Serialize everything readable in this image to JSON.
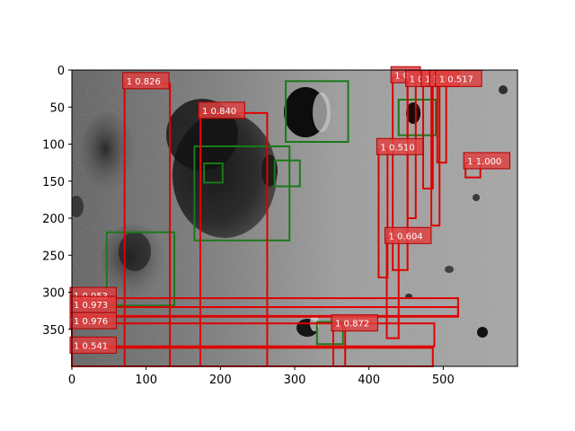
{
  "chart_data": {
    "type": "image-detection",
    "title": "",
    "xlabel": "",
    "ylabel": "",
    "xlim": [
      0,
      600
    ],
    "ylim": [
      400,
      0
    ],
    "xticks": [
      0,
      100,
      200,
      300,
      400,
      500
    ],
    "yticks": [
      0,
      50,
      100,
      150,
      200,
      250,
      300,
      350
    ],
    "grid": false,
    "legend": "none",
    "colors": {
      "prediction": "#e00000",
      "ground_truth": "#1a7a1a",
      "label_bg": "#e04040"
    },
    "image_description_icon": "lunar-surface-image",
    "ground_truth_boxes": [
      {
        "x0": 288,
        "y0": 15,
        "x1": 372,
        "y1": 97
      },
      {
        "x0": 440,
        "y0": 40,
        "x1": 490,
        "y1": 88
      },
      {
        "x0": 165,
        "y0": 103,
        "x1": 293,
        "y1": 230
      },
      {
        "x0": 178,
        "y0": 126,
        "x1": 203,
        "y1": 152
      },
      {
        "x0": 273,
        "y0": 122,
        "x1": 307,
        "y1": 157
      },
      {
        "x0": 47,
        "y0": 219,
        "x1": 138,
        "y1": 318
      },
      {
        "x0": 330,
        "y0": 340,
        "x1": 365,
        "y1": 370
      }
    ],
    "prediction_boxes": [
      {
        "label": "1 0.826",
        "x0": 71,
        "y0": 18,
        "x1": 132,
        "y1": 405
      },
      {
        "label": "1 0.840",
        "x0": 173,
        "y0": 58,
        "x1": 263,
        "y1": 400
      },
      {
        "label": "1 0.510",
        "x0": 413,
        "y0": 107,
        "x1": 425,
        "y1": 280
      },
      {
        "label": "1 0.604",
        "x0": 424,
        "y0": 227,
        "x1": 440,
        "y1": 362
      },
      {
        "label": "1 0.872",
        "x0": 352,
        "y0": 345,
        "x1": 368,
        "y1": 400
      },
      {
        "label": "1 1.000",
        "x0": 530,
        "y0": 126,
        "x1": 550,
        "y1": 145
      },
      {
        "label": "1 0.",
        "x0": 432,
        "y0": 10,
        "x1": 452,
        "y1": 270
      },
      {
        "label": "1 0.",
        "x0": 452,
        "y0": 15,
        "x1": 463,
        "y1": 200
      },
      {
        "label": "1 0.",
        "x0": 473,
        "y0": 15,
        "x1": 486,
        "y1": 160
      },
      {
        "label": "1 0.",
        "x0": 484,
        "y0": 15,
        "x1": 495,
        "y1": 210
      },
      {
        "label": "1 0.517",
        "x0": 492,
        "y0": 15,
        "x1": 504,
        "y1": 125
      },
      {
        "label": "1 0.953",
        "x0": 0,
        "y0": 308,
        "x1": 520,
        "y1": 333
      },
      {
        "label": "1 0.973",
        "x0": 0,
        "y0": 320,
        "x1": 520,
        "y1": 332
      },
      {
        "label": "1 0.976",
        "x0": 0,
        "y0": 342,
        "x1": 488,
        "y1": 373
      },
      {
        "label": "1 0.541",
        "x0": 0,
        "y0": 375,
        "x1": 486,
        "y1": 400
      }
    ]
  }
}
